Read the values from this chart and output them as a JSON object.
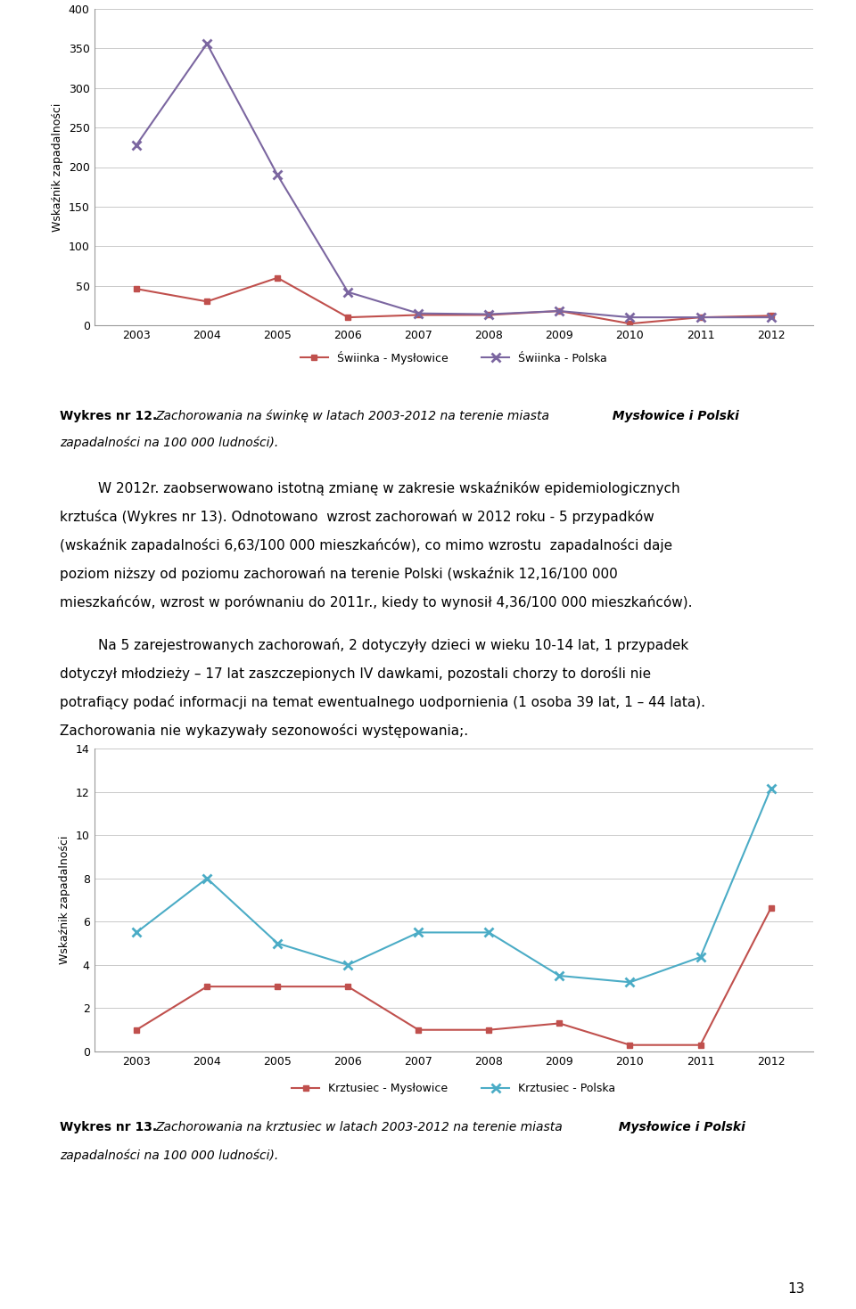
{
  "years": [
    2003,
    2004,
    2005,
    2006,
    2007,
    2008,
    2009,
    2010,
    2011,
    2012
  ],
  "swinka_myslowice": [
    46,
    30,
    60,
    10,
    13,
    13,
    18,
    2,
    10,
    12
  ],
  "swinka_polska": [
    228,
    356,
    190,
    42,
    15,
    14,
    18,
    10,
    10,
    10
  ],
  "krztusiec_myslowice": [
    1,
    3,
    3,
    3,
    1,
    1,
    1.3,
    0.3,
    0.3,
    6.63
  ],
  "krztusiec_polska": [
    5.5,
    8,
    5,
    4,
    5.5,
    5.5,
    3.5,
    3.2,
    4.36,
    12.16
  ],
  "swinka_myslowice_color": "#C0504D",
  "swinka_polska_color": "#7B66A0",
  "krztusiec_myslowice_color": "#C0504D",
  "krztusiec_polska_color": "#4BACC6",
  "chart1_ylabel": "Wskaźnik zapadalności",
  "chart1_ylim": [
    0,
    400
  ],
  "chart1_yticks": [
    0,
    50,
    100,
    150,
    200,
    250,
    300,
    350,
    400
  ],
  "chart2_ylabel": "Wskaźnik zapadalności",
  "chart2_ylim": [
    0,
    14
  ],
  "chart2_yticks": [
    0,
    2,
    4,
    6,
    8,
    10,
    12,
    14
  ],
  "legend1_labels": [
    "Świinka - Mysłowice",
    "Świinka - Polska"
  ],
  "legend2_labels": [
    "Krztusiec - Mysłowice",
    "Krztusiec - Polska"
  ],
  "page_number": "13",
  "background_color": "#FFFFFF",
  "grid_color": "#C0C0C0",
  "text_color": "#000000"
}
